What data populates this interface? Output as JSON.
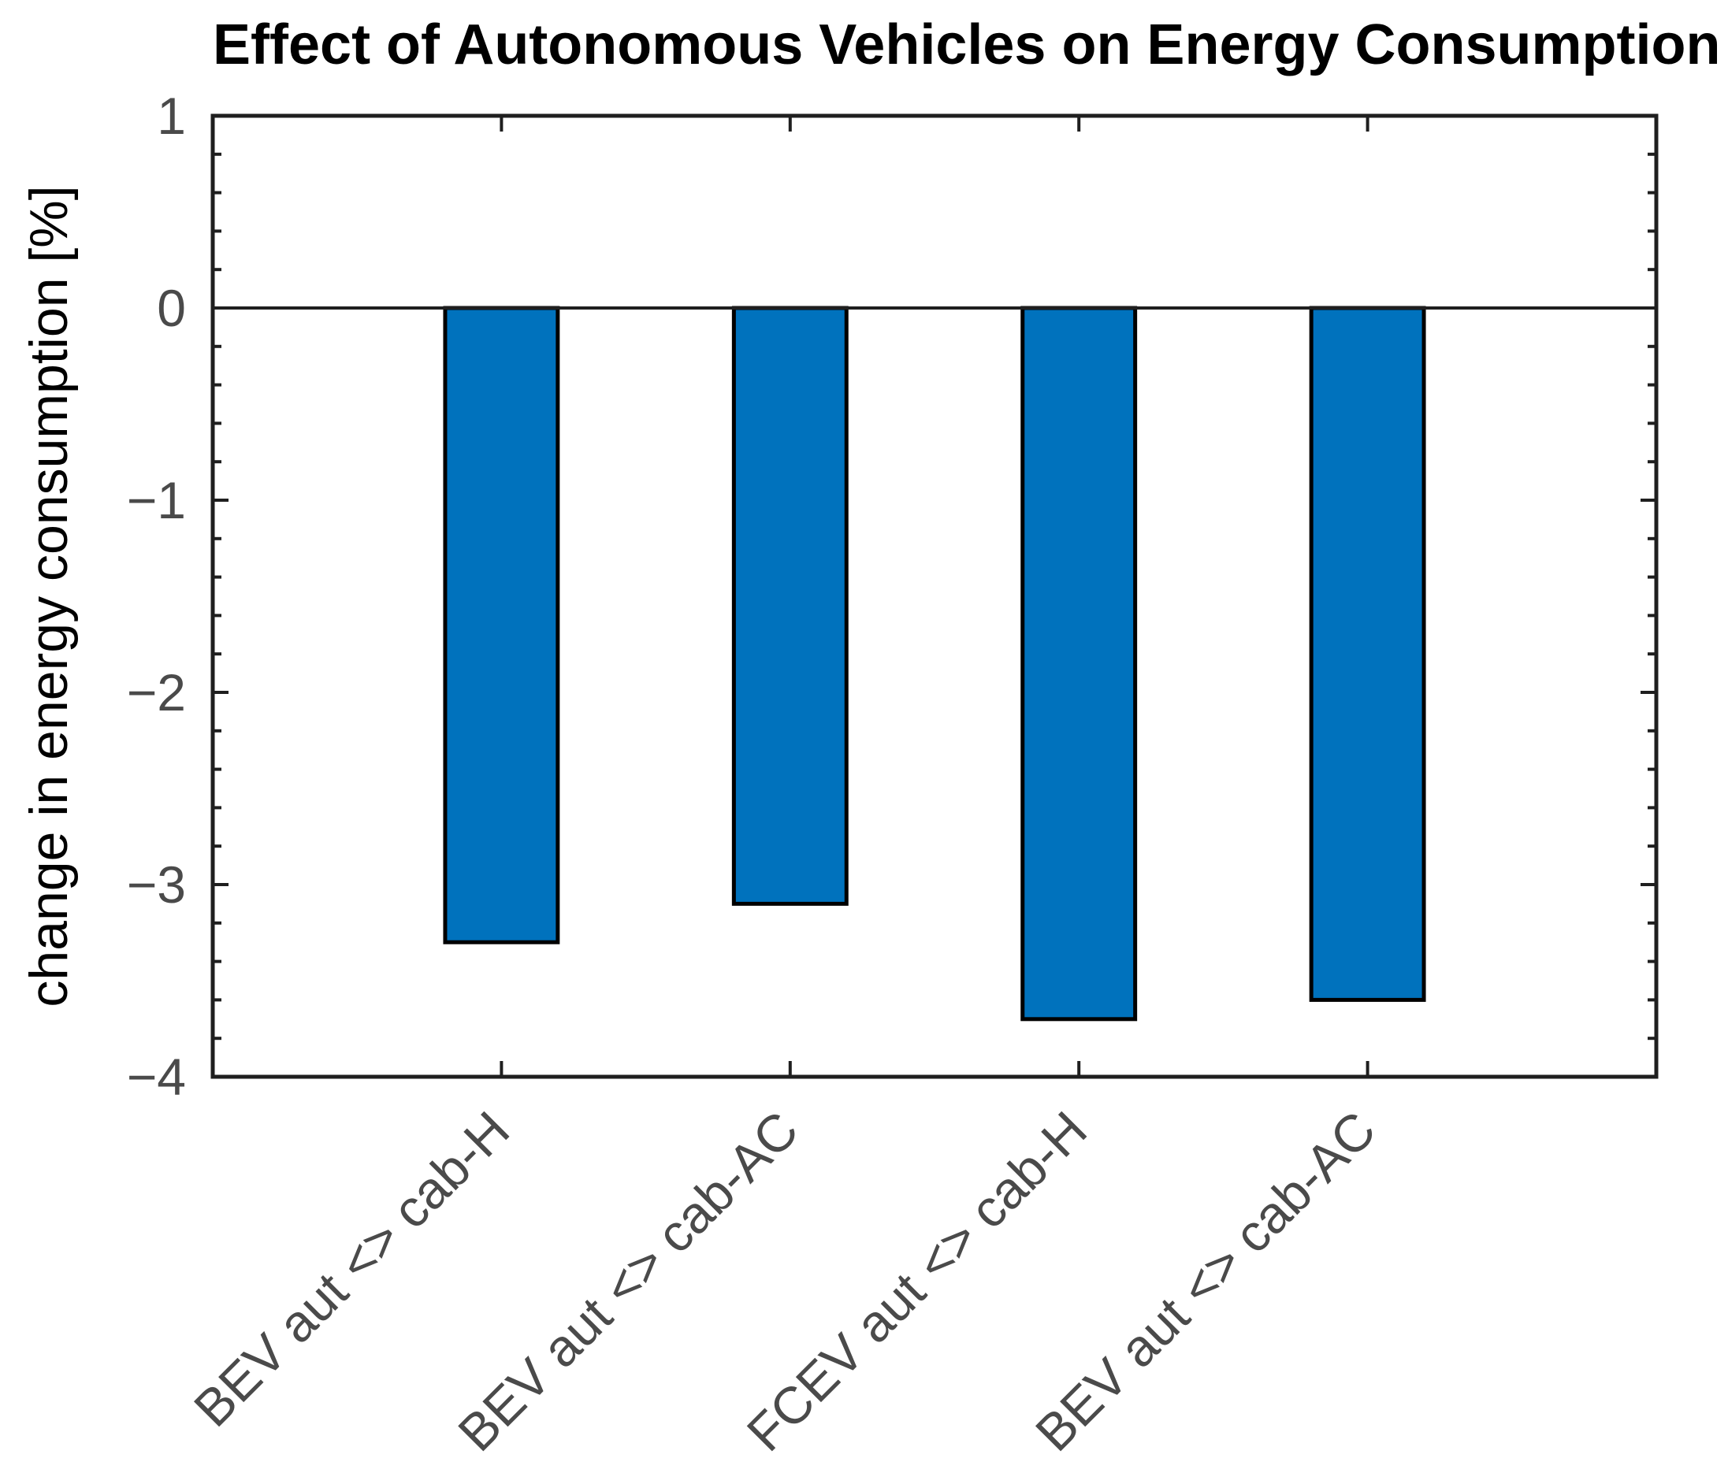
{
  "chart_data": {
    "type": "bar",
    "title": "Effect of Autonomous Vehicles on Energy Consumption",
    "ylabel": "change in energy consumption [%]",
    "xlabel": "",
    "categories": [
      "BEV aut <> cab-H",
      "BEV aut <> cab-AC",
      "FCEV aut <> cab-H",
      "BEV aut <> cab-AC"
    ],
    "values": [
      -3.3,
      -3.1,
      -3.7,
      -3.6
    ],
    "ylim": [
      -4,
      1
    ],
    "yticks": [
      1,
      0,
      -1,
      -2,
      -3,
      -4
    ],
    "ytick_labels": [
      "1",
      "0",
      "−1",
      "−2",
      "−3",
      "−4"
    ],
    "minor_tick_step": 0.2,
    "grid": false,
    "legend": null,
    "bar_width_fraction": 0.39,
    "baseline_value": 0,
    "colors": {
      "bar_fill": "#0072BD",
      "bar_edge": "#000000",
      "axis": "#1f1f1f",
      "tick_labels": "#4a4a4a",
      "title": "#000000",
      "background": "#ffffff"
    }
  }
}
